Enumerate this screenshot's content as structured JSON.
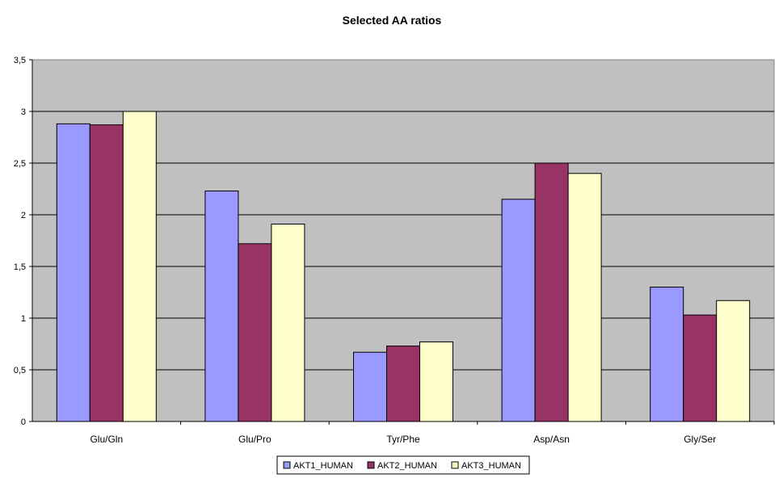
{
  "chart_data": {
    "type": "bar",
    "title": "Selected AA ratios",
    "xlabel": "",
    "ylabel": "",
    "categories": [
      "Glu/Gln",
      "Glu/Pro",
      "Tyr/Phe",
      "Asp/Asn",
      "Gly/Ser"
    ],
    "series": [
      {
        "name": "AKT1_HUMAN",
        "color": "#9999ff",
        "values": [
          2.88,
          2.23,
          0.67,
          2.15,
          1.3
        ]
      },
      {
        "name": "AKT2_HUMAN",
        "color": "#993366",
        "values": [
          2.87,
          1.72,
          0.73,
          2.5,
          1.03
        ]
      },
      {
        "name": "AKT3_HUMAN",
        "color": "#ffffcc",
        "values": [
          3.0,
          1.91,
          0.77,
          2.4,
          1.17
        ]
      }
    ],
    "ylim": [
      0,
      3.5
    ],
    "yticks": [
      "0",
      "0,5",
      "1",
      "1,5",
      "2",
      "2,5",
      "3",
      "3,5"
    ],
    "grid": true,
    "plot_background": "#c0c0c0",
    "legend_position": "bottom"
  }
}
